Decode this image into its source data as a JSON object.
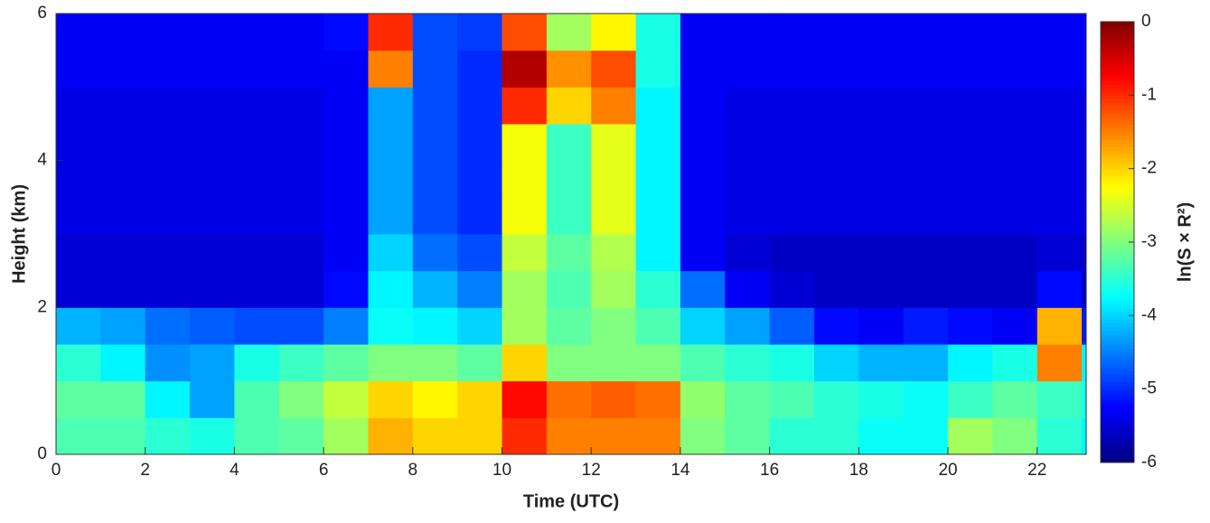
{
  "chart_data": {
    "type": "heatmap",
    "xlabel": "Time (UTC)",
    "ylabel": "Height (km)",
    "colorbar_label": "ln(S × R²)",
    "colormap": "jet",
    "x_bins": [
      0,
      1,
      2,
      3,
      4,
      5,
      6,
      7,
      8,
      9,
      10,
      11,
      12,
      13,
      14,
      15,
      16,
      17,
      18,
      19,
      20,
      21,
      22,
      23,
      23.1
    ],
    "y_bins": [
      0,
      0.5,
      1,
      1.5,
      2,
      2.5,
      3,
      3.5,
      4,
      4.5,
      5,
      5.5,
      6
    ],
    "xlim": [
      0,
      23.1
    ],
    "ylim": [
      0,
      6
    ],
    "xticks": [
      0,
      2,
      4,
      6,
      8,
      10,
      12,
      14,
      16,
      18,
      20,
      22
    ],
    "yticks": [
      0,
      2,
      4,
      6
    ],
    "zlim": [
      -6,
      0
    ],
    "zticks": [
      -6,
      -5,
      -4,
      -3,
      -2,
      -1,
      0
    ],
    "z": [
      [
        -3.3,
        -3.3,
        -3.5,
        -3.6,
        -3.3,
        -3.2,
        -2.8,
        -1.8,
        -2.0,
        -2.0,
        -1.0,
        -1.5,
        -1.5,
        -1.5,
        -3.0,
        -3.2,
        -3.5,
        -3.5,
        -3.7,
        -3.7,
        -2.8,
        -3.0,
        -3.5,
        -3.8
      ],
      [
        -3.2,
        -3.2,
        -3.8,
        -4.3,
        -3.3,
        -3.0,
        -2.6,
        -2.0,
        -2.2,
        -2.0,
        -0.8,
        -1.4,
        -1.3,
        -1.4,
        -2.9,
        -3.2,
        -3.3,
        -3.5,
        -3.6,
        -3.7,
        -3.4,
        -3.2,
        -3.4,
        -3.6
      ],
      [
        -3.5,
        -3.8,
        -4.4,
        -4.3,
        -3.6,
        -3.4,
        -3.2,
        -3.0,
        -3.0,
        -3.2,
        -2.0,
        -3.0,
        -3.0,
        -3.0,
        -3.3,
        -3.5,
        -3.6,
        -4.0,
        -4.2,
        -4.2,
        -3.8,
        -3.6,
        -1.5,
        -3.8
      ],
      [
        -4.2,
        -4.3,
        -4.6,
        -4.7,
        -4.8,
        -4.8,
        -4.5,
        -3.7,
        -3.8,
        -4.0,
        -2.8,
        -3.2,
        -3.0,
        -3.3,
        -4.0,
        -4.3,
        -4.7,
        -5.2,
        -5.3,
        -5.1,
        -5.2,
        -5.3,
        -1.8,
        -5.1
      ],
      [
        -5.5,
        -5.5,
        -5.5,
        -5.5,
        -5.5,
        -5.5,
        -5.2,
        -3.8,
        -4.2,
        -4.5,
        -2.8,
        -3.3,
        -2.8,
        -3.5,
        -4.6,
        -5.3,
        -5.5,
        -5.6,
        -5.6,
        -5.6,
        -5.6,
        -5.6,
        -5.2,
        -5.6
      ],
      [
        -5.5,
        -5.5,
        -5.5,
        -5.5,
        -5.5,
        -5.5,
        -5.3,
        -4.0,
        -4.6,
        -4.8,
        -2.6,
        -3.2,
        -2.7,
        -3.8,
        -5.3,
        -5.5,
        -5.6,
        -5.6,
        -5.6,
        -5.6,
        -5.6,
        -5.6,
        -5.5,
        -5.6
      ],
      [
        -5.4,
        -5.4,
        -5.4,
        -5.4,
        -5.4,
        -5.4,
        -5.3,
        -4.3,
        -4.8,
        -5.0,
        -2.3,
        -3.4,
        -2.4,
        -3.8,
        -5.3,
        -5.4,
        -5.4,
        -5.4,
        -5.4,
        -5.4,
        -5.4,
        -5.4,
        -5.4,
        -5.4
      ],
      [
        -5.4,
        -5.4,
        -5.4,
        -5.4,
        -5.4,
        -5.4,
        -5.3,
        -4.3,
        -4.8,
        -5.0,
        -2.3,
        -3.4,
        -2.4,
        -3.8,
        -5.3,
        -5.4,
        -5.4,
        -5.4,
        -5.4,
        -5.4,
        -5.4,
        -5.4,
        -5.4,
        -5.4
      ],
      [
        -5.4,
        -5.4,
        -5.4,
        -5.4,
        -5.4,
        -5.4,
        -5.3,
        -4.3,
        -4.8,
        -5.0,
        -2.3,
        -3.4,
        -2.4,
        -3.8,
        -5.3,
        -5.4,
        -5.4,
        -5.4,
        -5.4,
        -5.4,
        -5.4,
        -5.4,
        -5.4,
        -5.4
      ],
      [
        -5.4,
        -5.4,
        -5.4,
        -5.4,
        -5.4,
        -5.4,
        -5.3,
        -4.3,
        -4.8,
        -5.0,
        -1.0,
        -2.0,
        -1.5,
        -3.8,
        -5.3,
        -5.4,
        -5.4,
        -5.4,
        -5.4,
        -5.4,
        -5.4,
        -5.4,
        -5.4,
        -5.4
      ],
      [
        -5.3,
        -5.3,
        -5.3,
        -5.3,
        -5.3,
        -5.3,
        -5.3,
        -1.5,
        -4.8,
        -5.0,
        -0.3,
        -1.6,
        -1.2,
        -3.6,
        -5.3,
        -5.3,
        -5.3,
        -5.3,
        -5.3,
        -5.3,
        -5.3,
        -5.3,
        -5.3,
        -5.3
      ],
      [
        -5.3,
        -5.3,
        -5.3,
        -5.3,
        -5.3,
        -5.3,
        -5.2,
        -1.0,
        -4.8,
        -4.9,
        -1.2,
        -2.8,
        -2.2,
        -3.6,
        -5.3,
        -5.3,
        -5.3,
        -5.3,
        -5.3,
        -5.3,
        -5.3,
        -5.3,
        -5.3,
        -5.3
      ]
    ]
  }
}
